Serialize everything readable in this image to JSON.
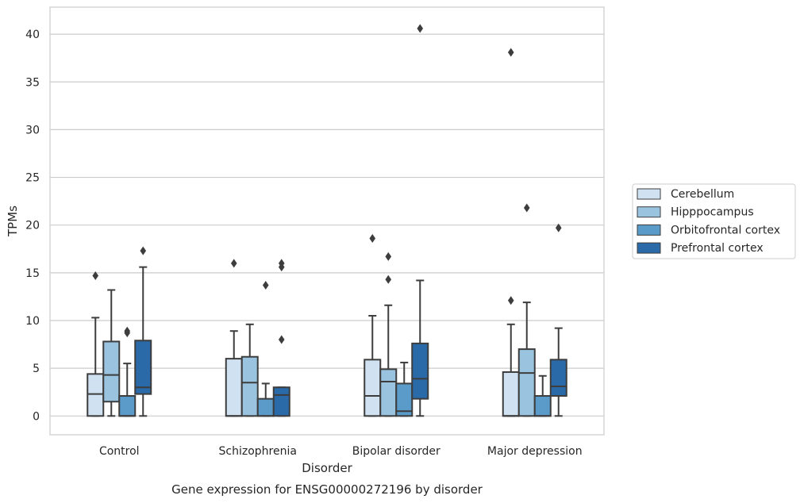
{
  "chart_data": {
    "type": "box",
    "xlabel": "Disorder",
    "ylabel": "TPMs",
    "caption": "Gene expression for ENSG00000272196 by disorder",
    "ylim": [
      -2,
      42.7
    ],
    "yticks": [
      0,
      5,
      10,
      15,
      20,
      25,
      30,
      35,
      40
    ],
    "grid": true,
    "legend_position": "right",
    "categories": [
      "Control",
      "Schizophrenia",
      "Bipolar disorder",
      "Major depression"
    ],
    "series": [
      {
        "name": "Cerebellum",
        "color": "#d0e1f2",
        "boxes": [
          {
            "whislo": 0,
            "q1": 0,
            "med": 2.3,
            "q3": 4.4,
            "whishi": 10.3,
            "fliers": [
              14.7
            ]
          },
          {
            "whislo": 0,
            "q1": 0,
            "med": 0,
            "q3": 6.0,
            "whishi": 8.9,
            "fliers": [
              16.0
            ]
          },
          {
            "whislo": 0,
            "q1": 0,
            "med": 2.1,
            "q3": 5.9,
            "whishi": 10.5,
            "fliers": [
              18.6
            ]
          },
          {
            "whislo": 0,
            "q1": 0,
            "med": 0,
            "q3": 4.6,
            "whishi": 9.6,
            "fliers": [
              12.1,
              38.1
            ]
          }
        ]
      },
      {
        "name": "Hipppocampus",
        "color": "#99c3de",
        "boxes": [
          {
            "whislo": 0,
            "q1": 1.5,
            "med": 4.3,
            "q3": 7.8,
            "whishi": 13.2,
            "fliers": []
          },
          {
            "whislo": 0,
            "q1": 0,
            "med": 3.5,
            "q3": 6.2,
            "whishi": 9.6,
            "fliers": []
          },
          {
            "whislo": 0,
            "q1": 0,
            "med": 3.6,
            "q3": 4.9,
            "whishi": 11.6,
            "fliers": [
              14.3,
              16.7
            ]
          },
          {
            "whislo": 0,
            "q1": 0,
            "med": 4.5,
            "q3": 7.0,
            "whishi": 11.9,
            "fliers": [
              21.8
            ]
          }
        ]
      },
      {
        "name": "Orbitofrontal cortex",
        "color": "#5a9bc9",
        "boxes": [
          {
            "whislo": 0,
            "q1": 0,
            "med": 0,
            "q3": 2.1,
            "whishi": 5.5,
            "fliers": [
              8.7,
              8.9
            ]
          },
          {
            "whislo": 0,
            "q1": 0,
            "med": 0,
            "q3": 1.8,
            "whishi": 3.4,
            "fliers": [
              13.7
            ]
          },
          {
            "whislo": 0,
            "q1": 0,
            "med": 0.5,
            "q3": 3.4,
            "whishi": 5.6,
            "fliers": []
          },
          {
            "whislo": 0,
            "q1": 0,
            "med": 0,
            "q3": 2.1,
            "whishi": 4.2,
            "fliers": []
          }
        ]
      },
      {
        "name": "Prefrontal cortex",
        "color": "#2a6aa8",
        "boxes": [
          {
            "whislo": 0,
            "q1": 2.3,
            "med": 3.0,
            "q3": 7.9,
            "whishi": 15.6,
            "fliers": [
              17.3
            ]
          },
          {
            "whislo": 0,
            "q1": 0,
            "med": 2.2,
            "q3": 3.0,
            "whishi": 3.0,
            "fliers": [
              8.0,
              15.6,
              16.0
            ]
          },
          {
            "whislo": 0,
            "q1": 1.8,
            "med": 3.9,
            "q3": 7.6,
            "whishi": 14.2,
            "fliers": [
              40.6
            ]
          },
          {
            "whislo": 0,
            "q1": 2.1,
            "med": 3.1,
            "q3": 5.9,
            "whishi": 9.2,
            "fliers": [
              19.7
            ]
          }
        ]
      }
    ]
  }
}
